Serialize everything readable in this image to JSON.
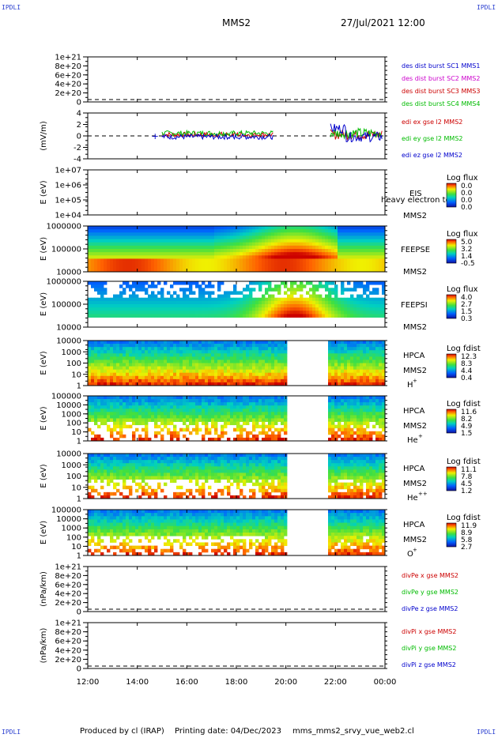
{
  "corner_label": "IPDLI",
  "header": {
    "mission": "MMS2",
    "datetime": "27/Jul/2021 12:00"
  },
  "footer": {
    "produced_by": "Produced by cl (IRAP)",
    "printing_date": "Printing date: 04/Dec/2023",
    "script": "mms_mms2_srvy_vue_web2.cl"
  },
  "time_axis": {
    "ticks": [
      "12:00",
      "14:00",
      "16:00",
      "18:00",
      "20:00",
      "22:00",
      "00:00"
    ]
  },
  "chart_data": [
    {
      "type": "line",
      "id": "dist",
      "ylabel": "",
      "yticks": [
        "1e+21",
        "8e+20",
        "6e+20",
        "4e+20",
        "2e+20",
        "0"
      ],
      "legend": [
        {
          "text": "des dist burst SC1 MMS1",
          "color": "#0000cc"
        },
        {
          "text": "des dist burst SC2 MMS2",
          "color": "#cc00cc"
        },
        {
          "text": "des dist burst SC3 MMS3",
          "color": "#cc0000"
        },
        {
          "text": "des dist burst SC4 MMS4",
          "color": "#00bb00"
        }
      ],
      "zero_line": true
    },
    {
      "type": "line",
      "id": "edi",
      "ylabel": "(mV/m)",
      "yticks": [
        "4",
        "2",
        "0",
        "-2",
        "-4"
      ],
      "ylim": [
        -5,
        5
      ],
      "legend": [
        {
          "text": "edi ex gse l2 MMS2",
          "color": "#cc0000"
        },
        {
          "text": "edi ey gse l2 MMS2",
          "color": "#00bb00"
        },
        {
          "text": "edi ez gse l2 MMS2",
          "color": "#0000cc"
        }
      ],
      "zero_line": true,
      "coverage_hours": [
        [
          3.0,
          5.8
        ],
        [
          5.8,
          7.5
        ],
        [
          9.8,
          11.9
        ]
      ]
    },
    {
      "type": "heatmap",
      "id": "eis",
      "ylabel": "E (eV)",
      "yticks": [
        "1e+07",
        "1e+06",
        "1e+05",
        "1e+04"
      ],
      "log": true,
      "instrument": "EIS",
      "spacecraft": "MMS2",
      "overlay_text": "heavy electron to",
      "colorbar": {
        "title": "Log flux",
        "ticks": [
          "0.0",
          "0.0",
          "0.0",
          "0.0"
        ]
      },
      "has_data": false
    },
    {
      "type": "heatmap",
      "id": "feepse",
      "ylabel": "E (eV)",
      "yticks": [
        "1000000",
        "100000",
        "10000"
      ],
      "log": true,
      "instrument": "FEEPSE",
      "spacecraft": "MMS2",
      "colorbar": {
        "title": "Log flux",
        "ticks": [
          "5.0",
          "3.2",
          "1.4",
          "-0.5"
        ]
      },
      "has_data": true
    },
    {
      "type": "heatmap",
      "id": "feepsi",
      "ylabel": "E (eV)",
      "yticks": [
        "1000000",
        "100000",
        "10000"
      ],
      "log": true,
      "instrument": "FEEPSI",
      "spacecraft": "MMS2",
      "colorbar": {
        "title": "Log flux",
        "ticks": [
          "4.0",
          "2.7",
          "1.5",
          "0.3"
        ]
      },
      "has_data": true
    },
    {
      "type": "heatmap",
      "id": "hpca_h",
      "ylabel": "E (eV)",
      "yticks": [
        "10000",
        "1000",
        "100",
        "10",
        "1"
      ],
      "log": true,
      "instrument": "HPCA",
      "spacecraft": "MMS2",
      "species": "H",
      "charge": "+",
      "colorbar": {
        "title": "Log fdist",
        "ticks": [
          "12.3",
          "8.3",
          "4.4",
          "0.4"
        ]
      },
      "gap_hours": [
        8.0,
        9.7
      ],
      "has_data": true
    },
    {
      "type": "heatmap",
      "id": "hpca_he1",
      "ylabel": "E (eV)",
      "yticks": [
        "100000",
        "10000",
        "1000",
        "100",
        "10",
        "1"
      ],
      "log": true,
      "instrument": "HPCA",
      "spacecraft": "MMS2",
      "species": "He",
      "charge": "+",
      "colorbar": {
        "title": "Log fdist",
        "ticks": [
          "11.6",
          "8.2",
          "4.9",
          "1.5"
        ]
      },
      "gap_hours": [
        8.0,
        9.7
      ],
      "has_data": true
    },
    {
      "type": "heatmap",
      "id": "hpca_he2",
      "ylabel": "E (eV)",
      "yticks": [
        "10000",
        "1000",
        "100",
        "10",
        "1"
      ],
      "log": true,
      "instrument": "HPCA",
      "spacecraft": "MMS2",
      "species": "He",
      "charge": "++",
      "colorbar": {
        "title": "Log fdist",
        "ticks": [
          "11.1",
          "7.8",
          "4.5",
          "1.2"
        ]
      },
      "gap_hours": [
        8.0,
        9.7
      ],
      "has_data": true
    },
    {
      "type": "heatmap",
      "id": "hpca_o",
      "ylabel": "E (eV)",
      "yticks": [
        "100000",
        "10000",
        "1000",
        "100",
        "10",
        "1"
      ],
      "log": true,
      "instrument": "HPCA",
      "spacecraft": "MMS2",
      "species": "O",
      "charge": "+",
      "colorbar": {
        "title": "Log fdist",
        "ticks": [
          "11.9",
          "8.9",
          "5.8",
          "2.7"
        ]
      },
      "gap_hours": [
        8.0,
        9.7
      ],
      "has_data": true
    },
    {
      "type": "line",
      "id": "divpe",
      "ylabel": "(nPa/km)",
      "yticks": [
        "1e+21",
        "8e+20",
        "6e+20",
        "4e+20",
        "2e+20",
        "0"
      ],
      "legend": [
        {
          "text": "divPe x gse MMS2",
          "color": "#cc0000"
        },
        {
          "text": "divPe y gse MMS2",
          "color": "#00bb00"
        },
        {
          "text": "divPe z gse MMS2",
          "color": "#0000cc"
        }
      ],
      "zero_line": true
    },
    {
      "type": "line",
      "id": "divpi",
      "ylabel": "(nPa/km)",
      "yticks": [
        "1e+21",
        "8e+20",
        "6e+20",
        "4e+20",
        "2e+20",
        "0"
      ],
      "legend": [
        {
          "text": "divPi x gse MMS2",
          "color": "#cc0000"
        },
        {
          "text": "divPi y gse MMS2",
          "color": "#00bb00"
        },
        {
          "text": "divPi z gse MMS2",
          "color": "#0000cc"
        }
      ],
      "zero_line": true
    }
  ]
}
